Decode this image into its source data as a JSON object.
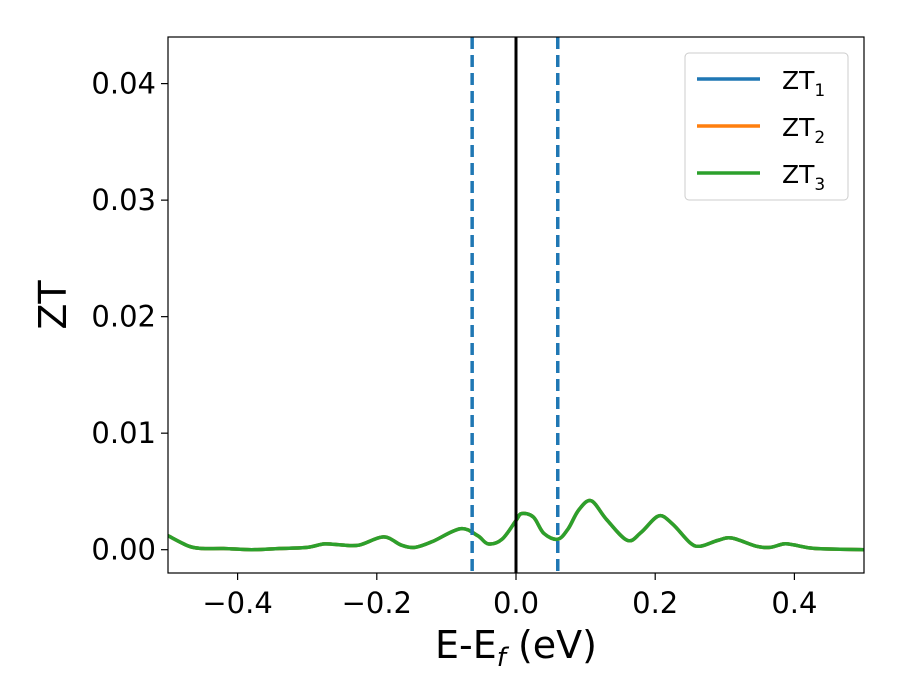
{
  "chart_data": {
    "type": "line",
    "xlabel_main": "E-E",
    "xlabel_sub": "f",
    "xlabel_unit": " (eV)",
    "ylabel": "ZT",
    "xlim": [
      -0.5,
      0.5
    ],
    "ylim": [
      -0.002,
      0.044
    ],
    "x_ticks": [
      -0.4,
      -0.2,
      0.0,
      0.2,
      0.4
    ],
    "x_tick_labels": [
      "−0.4",
      "−0.2",
      "0.0",
      "0.2",
      "0.4"
    ],
    "y_ticks": [
      0.0,
      0.01,
      0.02,
      0.03,
      0.04
    ],
    "y_tick_labels": [
      "0.00",
      "0.01",
      "0.02",
      "0.03",
      "0.04"
    ],
    "grid": false,
    "legend_position": "top-right",
    "series": [
      {
        "name": "ZT",
        "sub": "1",
        "color": "#1f77b4",
        "x": [
          -0.5,
          -0.47,
          -0.45,
          -0.42,
          -0.38,
          -0.34,
          -0.3,
          -0.275,
          -0.25,
          -0.225,
          -0.19,
          -0.165,
          -0.145,
          -0.12,
          -0.08,
          -0.055,
          -0.04,
          -0.02,
          0.0,
          0.008,
          0.025,
          0.04,
          0.06,
          0.075,
          0.09,
          0.108,
          0.13,
          0.16,
          0.18,
          0.205,
          0.225,
          0.25,
          0.265,
          0.29,
          0.31,
          0.345,
          0.365,
          0.385,
          0.4,
          0.43,
          0.5
        ],
        "y": [
          0.0012,
          0.0003,
          0.0001,
          0.0001,
          0.0,
          0.0001,
          0.0002,
          0.0005,
          0.0004,
          0.0004,
          0.0011,
          0.0004,
          0.0002,
          0.0007,
          0.0018,
          0.0012,
          0.0005,
          0.0009,
          0.0025,
          0.0031,
          0.0028,
          0.0014,
          0.0009,
          0.0018,
          0.0034,
          0.0042,
          0.0026,
          0.0008,
          0.0015,
          0.0029,
          0.0022,
          0.0006,
          0.0003,
          0.0008,
          0.001,
          0.0003,
          0.0002,
          0.0005,
          0.0004,
          0.0001,
          0.0
        ]
      },
      {
        "name": "ZT",
        "sub": "2",
        "color": "#ff7f0e",
        "x": [
          -0.5,
          -0.47,
          -0.45,
          -0.42,
          -0.38,
          -0.34,
          -0.3,
          -0.275,
          -0.25,
          -0.225,
          -0.19,
          -0.165,
          -0.145,
          -0.12,
          -0.08,
          -0.055,
          -0.04,
          -0.02,
          0.0,
          0.008,
          0.025,
          0.04,
          0.06,
          0.075,
          0.09,
          0.108,
          0.13,
          0.16,
          0.18,
          0.205,
          0.225,
          0.25,
          0.265,
          0.29,
          0.31,
          0.345,
          0.365,
          0.385,
          0.4,
          0.43,
          0.5
        ],
        "y": [
          0.0012,
          0.0003,
          0.0001,
          0.0001,
          0.0,
          0.0001,
          0.0002,
          0.0005,
          0.0004,
          0.0004,
          0.0011,
          0.0004,
          0.0002,
          0.0007,
          0.0018,
          0.0012,
          0.0005,
          0.0009,
          0.0025,
          0.0031,
          0.0028,
          0.0014,
          0.0009,
          0.0018,
          0.0034,
          0.0042,
          0.0026,
          0.0008,
          0.0015,
          0.0029,
          0.0022,
          0.0006,
          0.0003,
          0.0008,
          0.001,
          0.0003,
          0.0002,
          0.0005,
          0.0004,
          0.0001,
          0.0
        ]
      },
      {
        "name": "ZT",
        "sub": "3",
        "color": "#2ca02c",
        "x": [
          -0.5,
          -0.47,
          -0.45,
          -0.42,
          -0.38,
          -0.34,
          -0.3,
          -0.275,
          -0.25,
          -0.225,
          -0.19,
          -0.165,
          -0.145,
          -0.12,
          -0.08,
          -0.055,
          -0.04,
          -0.02,
          0.0,
          0.008,
          0.025,
          0.04,
          0.06,
          0.075,
          0.09,
          0.108,
          0.13,
          0.16,
          0.18,
          0.205,
          0.225,
          0.25,
          0.265,
          0.29,
          0.31,
          0.345,
          0.365,
          0.385,
          0.4,
          0.43,
          0.5
        ],
        "y": [
          0.0012,
          0.0003,
          0.0001,
          0.0001,
          0.0,
          0.0001,
          0.0002,
          0.0005,
          0.0004,
          0.0004,
          0.0011,
          0.0004,
          0.0002,
          0.0007,
          0.0018,
          0.0012,
          0.0005,
          0.0009,
          0.0025,
          0.0031,
          0.0028,
          0.0014,
          0.0009,
          0.0018,
          0.0034,
          0.0042,
          0.0026,
          0.0008,
          0.0015,
          0.0029,
          0.0022,
          0.0006,
          0.0003,
          0.0008,
          0.001,
          0.0003,
          0.0002,
          0.0005,
          0.0004,
          0.0001,
          0.0
        ]
      }
    ],
    "vertical_lines": [
      {
        "x": -0.063,
        "style": "dashed",
        "color": "#1f77b4"
      },
      {
        "x": 0.06,
        "style": "dashed",
        "color": "#1f77b4"
      },
      {
        "x": 0.0,
        "style": "solid",
        "color": "#000000"
      }
    ]
  }
}
